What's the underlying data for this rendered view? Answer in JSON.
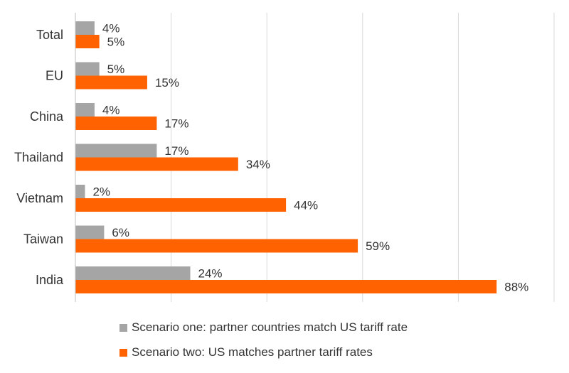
{
  "chart_data": {
    "type": "bar",
    "orientation": "horizontal",
    "categories": [
      "Total",
      "EU",
      "China",
      "Thailand",
      "Vietnam",
      "Taiwan",
      "India"
    ],
    "series": [
      {
        "name": "Scenario one: partner countries match US tariff rate",
        "color": "#a5a5a5",
        "values": [
          4,
          5,
          4,
          17,
          2,
          6,
          24
        ],
        "labels": [
          "4%",
          "5%",
          "4%",
          "17%",
          "2%",
          "6%",
          "24%"
        ]
      },
      {
        "name": "Scenario two: US matches partner tariff rates",
        "color": "#ff6200",
        "values": [
          5,
          15,
          17,
          34,
          44,
          59,
          88
        ],
        "labels": [
          "5%",
          "15%",
          "17%",
          "34%",
          "44%",
          "59%",
          "88%"
        ]
      }
    ],
    "xlim": [
      0,
      100
    ],
    "grid": true,
    "legend_position": "bottom"
  }
}
